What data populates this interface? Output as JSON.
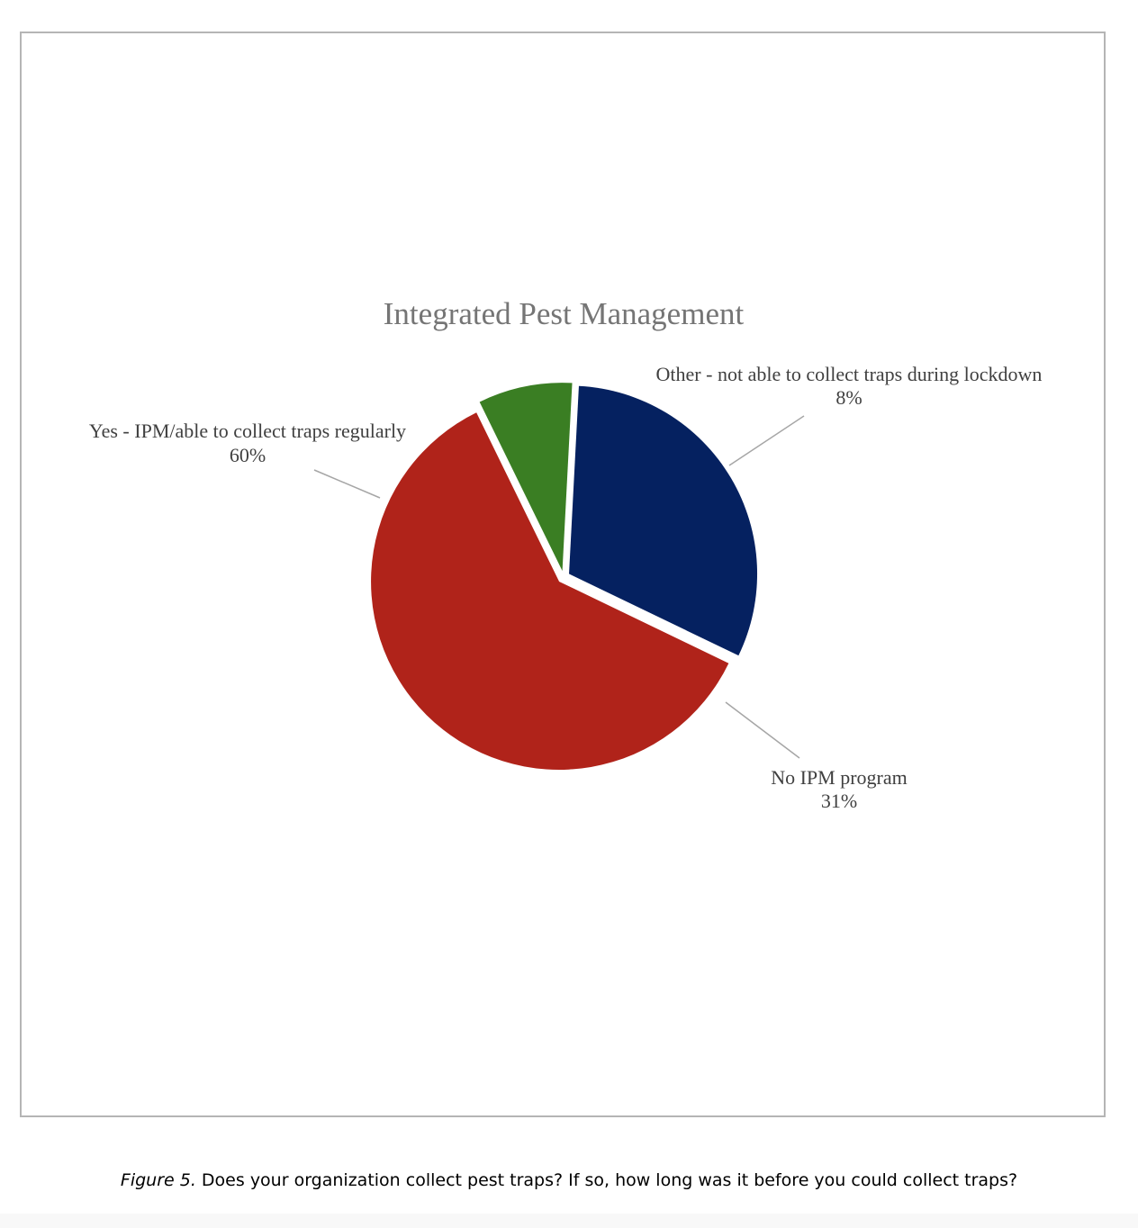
{
  "chart_data": {
    "type": "pie",
    "title": "Integrated Pest Management",
    "slices": [
      {
        "label": "No IPM program",
        "value": 31,
        "display": "31%",
        "color": "#052160"
      },
      {
        "label": "Yes - IPM/able to collect traps regularly",
        "value": 60,
        "display": "60%",
        "color": "#b0231a"
      },
      {
        "label": "Other - not able to collect traps during lockdown",
        "value": 8,
        "display": "8%",
        "color": "#3a7e23"
      }
    ]
  },
  "caption": {
    "figure_label": "Figure 5.",
    "text": " Does your organization collect pest traps? If so, how long was it before you could collect traps?"
  }
}
